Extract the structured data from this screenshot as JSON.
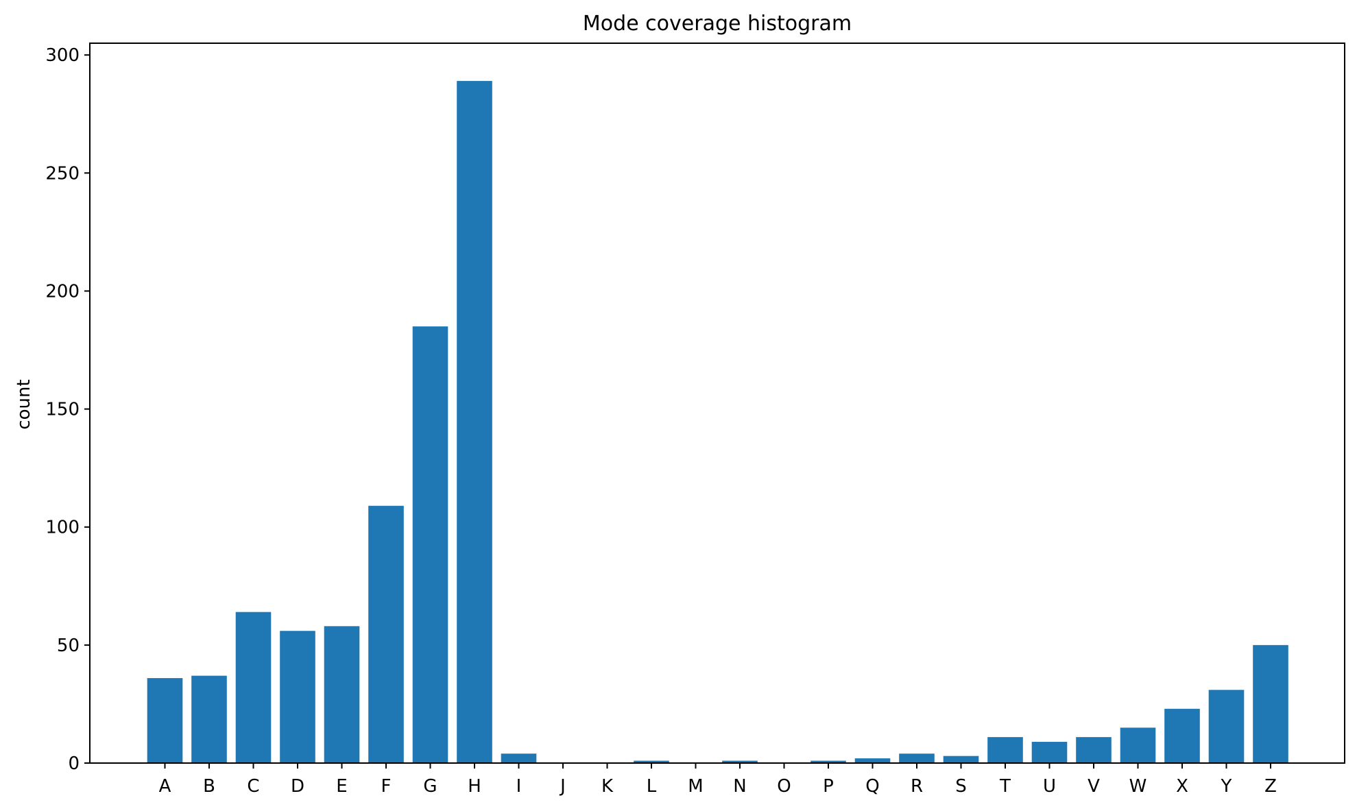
{
  "chart_data": {
    "type": "bar",
    "title": "Mode coverage histogram",
    "xlabel": "",
    "ylabel": "count",
    "categories": [
      "A",
      "B",
      "C",
      "D",
      "E",
      "F",
      "G",
      "H",
      "I",
      "J",
      "K",
      "L",
      "M",
      "N",
      "O",
      "P",
      "Q",
      "R",
      "S",
      "T",
      "U",
      "V",
      "W",
      "X",
      "Y",
      "Z"
    ],
    "values": [
      36,
      37,
      64,
      56,
      58,
      109,
      185,
      289,
      4,
      0,
      0,
      1,
      0,
      1,
      0,
      1,
      2,
      4,
      3,
      11,
      9,
      11,
      15,
      23,
      31,
      50
    ],
    "ylim": [
      0,
      305
    ],
    "yticks": [
      0,
      50,
      100,
      150,
      200,
      250,
      300
    ],
    "grid": false,
    "bar_color": "#1f77b4"
  }
}
